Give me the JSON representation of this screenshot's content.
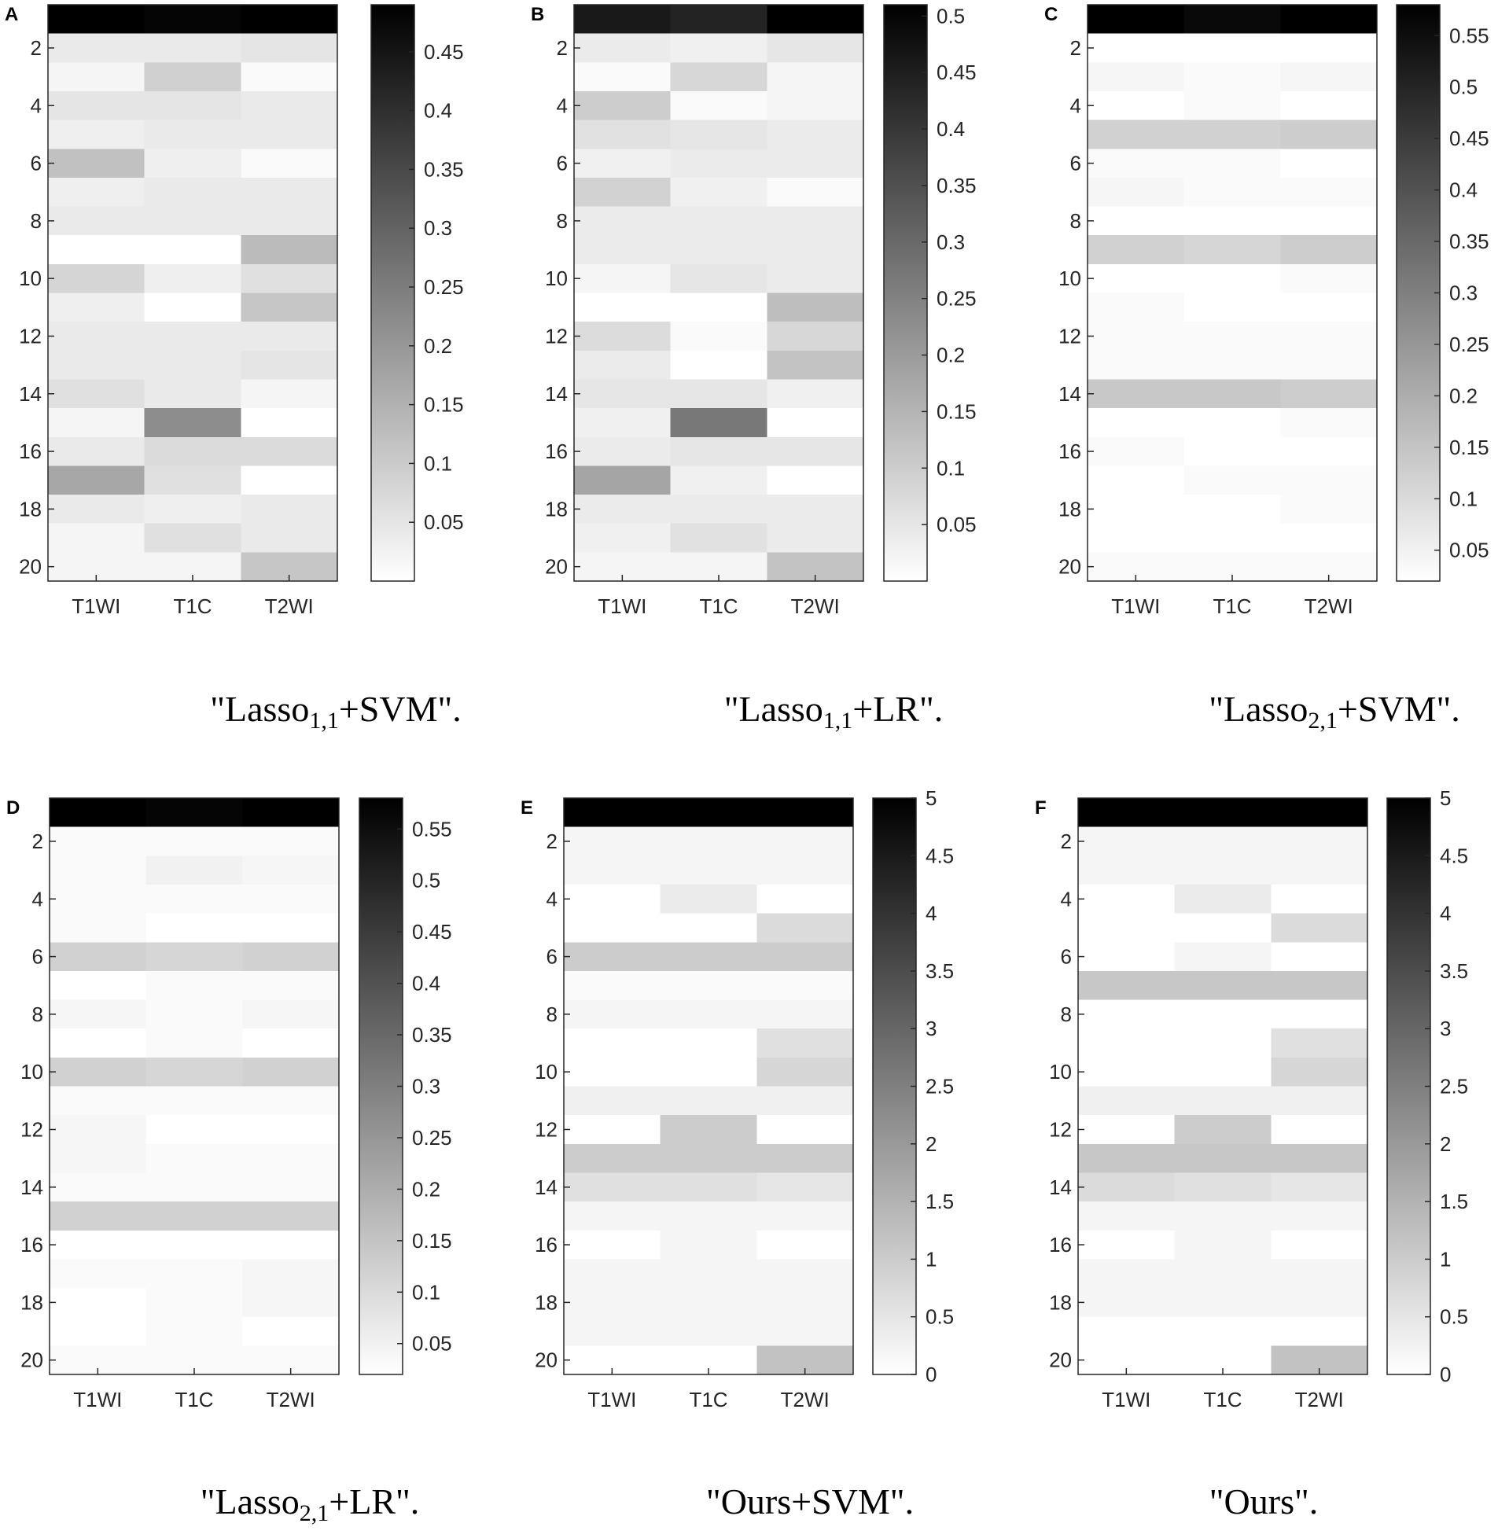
{
  "figure": {
    "captions": [
      {
        "pre": "\"Lasso",
        "sub": "1,1",
        "post": "+SVM\"."
      },
      {
        "pre": "\"Lasso",
        "sub": "1,1",
        "post": "+LR\"."
      },
      {
        "pre": "\"Lasso",
        "sub": "2,1",
        "post": "+SVM\"."
      },
      {
        "pre": "\"Lasso",
        "sub": "2,1",
        "post": "+LR\"."
      },
      {
        "pre": "\"Ours+SVM\".",
        "sub": "",
        "post": ""
      },
      {
        "pre": "\"Ours\".",
        "sub": "",
        "post": ""
      }
    ]
  },
  "chart_data": [
    {
      "type": "heatmap",
      "panel": "A",
      "x_categories": [
        "T1WI",
        "T1C",
        "T2WI"
      ],
      "y_ticks": [
        2,
        4,
        6,
        8,
        10,
        12,
        14,
        16,
        18,
        20
      ],
      "y_range": [
        1,
        20
      ],
      "colormap": "gray-reversed",
      "colorbar": {
        "min": 0,
        "max": 0.49,
        "ticks": [
          "0.05",
          "0.1",
          "0.15",
          "0.2",
          "0.25",
          "0.3",
          "0.35",
          "0.4",
          "0.45"
        ]
      },
      "values": [
        [
          0.49,
          0.48,
          0.49
        ],
        [
          0.04,
          0.04,
          0.05
        ],
        [
          0.02,
          0.09,
          0.01
        ],
        [
          0.05,
          0.05,
          0.04
        ],
        [
          0.03,
          0.04,
          0.04
        ],
        [
          0.12,
          0.03,
          0.01
        ],
        [
          0.03,
          0.04,
          0.04
        ],
        [
          0.04,
          0.04,
          0.04
        ],
        [
          0.0,
          0.0,
          0.13
        ],
        [
          0.08,
          0.03,
          0.06
        ],
        [
          0.03,
          0.0,
          0.11
        ],
        [
          0.04,
          0.04,
          0.04
        ],
        [
          0.04,
          0.04,
          0.05
        ],
        [
          0.06,
          0.04,
          0.02
        ],
        [
          0.02,
          0.22,
          0.0
        ],
        [
          0.04,
          0.07,
          0.07
        ],
        [
          0.17,
          0.06,
          0.0
        ],
        [
          0.04,
          0.03,
          0.04
        ],
        [
          0.02,
          0.06,
          0.04
        ],
        [
          0.02,
          0.02,
          0.11
        ]
      ]
    },
    {
      "type": "heatmap",
      "panel": "B",
      "x_categories": [
        "T1WI",
        "T1C",
        "T2WI"
      ],
      "y_ticks": [
        2,
        4,
        6,
        8,
        10,
        12,
        14,
        16,
        18,
        20
      ],
      "y_range": [
        1,
        20
      ],
      "colormap": "gray-reversed",
      "colorbar": {
        "min": 0,
        "max": 0.51,
        "ticks": [
          "0.05",
          "0.1",
          "0.15",
          "0.2",
          "0.25",
          "0.3",
          "0.35",
          "0.4",
          "0.45",
          "0.5"
        ]
      },
      "values": [
        [
          0.46,
          0.44,
          0.51
        ],
        [
          0.04,
          0.03,
          0.05
        ],
        [
          0.01,
          0.08,
          0.02
        ],
        [
          0.1,
          0.01,
          0.02
        ],
        [
          0.06,
          0.05,
          0.04
        ],
        [
          0.03,
          0.04,
          0.04
        ],
        [
          0.09,
          0.03,
          0.01
        ],
        [
          0.04,
          0.04,
          0.04
        ],
        [
          0.04,
          0.04,
          0.04
        ],
        [
          0.02,
          0.05,
          0.04
        ],
        [
          0.0,
          0.0,
          0.13
        ],
        [
          0.07,
          0.01,
          0.08
        ],
        [
          0.04,
          0.0,
          0.12
        ],
        [
          0.05,
          0.05,
          0.03
        ],
        [
          0.03,
          0.27,
          0.0
        ],
        [
          0.04,
          0.05,
          0.05
        ],
        [
          0.18,
          0.03,
          0.0
        ],
        [
          0.04,
          0.04,
          0.04
        ],
        [
          0.03,
          0.06,
          0.04
        ],
        [
          0.02,
          0.02,
          0.12
        ]
      ]
    },
    {
      "type": "heatmap",
      "panel": "C",
      "x_categories": [
        "T1WI",
        "T1C",
        "T2WI"
      ],
      "y_ticks": [
        2,
        4,
        6,
        8,
        10,
        12,
        14,
        16,
        18,
        20
      ],
      "y_range": [
        1,
        20
      ],
      "colormap": "gray-reversed",
      "colorbar": {
        "min": 0.02,
        "max": 0.58,
        "ticks": [
          "0.05",
          "0.1",
          "0.15",
          "0.2",
          "0.25",
          "0.3",
          "0.35",
          "0.4",
          "0.45",
          "0.5",
          "0.55"
        ]
      },
      "values": [
        [
          0.58,
          0.56,
          0.58
        ],
        [
          0.02,
          0.02,
          0.02
        ],
        [
          0.04,
          0.03,
          0.04
        ],
        [
          0.02,
          0.03,
          0.02
        ],
        [
          0.12,
          0.12,
          0.13
        ],
        [
          0.03,
          0.03,
          0.02
        ],
        [
          0.04,
          0.03,
          0.03
        ],
        [
          0.02,
          0.02,
          0.02
        ],
        [
          0.12,
          0.11,
          0.13
        ],
        [
          0.02,
          0.02,
          0.03
        ],
        [
          0.03,
          0.02,
          0.02
        ],
        [
          0.03,
          0.03,
          0.03
        ],
        [
          0.03,
          0.03,
          0.03
        ],
        [
          0.14,
          0.14,
          0.13
        ],
        [
          0.02,
          0.02,
          0.03
        ],
        [
          0.03,
          0.02,
          0.02
        ],
        [
          0.02,
          0.03,
          0.03
        ],
        [
          0.02,
          0.02,
          0.03
        ],
        [
          0.02,
          0.02,
          0.02
        ],
        [
          0.03,
          0.03,
          0.03
        ]
      ]
    },
    {
      "type": "heatmap",
      "panel": "D",
      "x_categories": [
        "T1WI",
        "T1C",
        "T2WI"
      ],
      "y_ticks": [
        2,
        4,
        6,
        8,
        10,
        12,
        14,
        16,
        18,
        20
      ],
      "y_range": [
        1,
        20
      ],
      "colormap": "gray-reversed",
      "colorbar": {
        "min": 0.02,
        "max": 0.58,
        "ticks": [
          "0.05",
          "0.1",
          "0.15",
          "0.2",
          "0.25",
          "0.3",
          "0.35",
          "0.4",
          "0.45",
          "0.5",
          "0.55"
        ]
      },
      "values": [
        [
          0.58,
          0.57,
          0.58
        ],
        [
          0.03,
          0.03,
          0.03
        ],
        [
          0.03,
          0.05,
          0.04
        ],
        [
          0.03,
          0.03,
          0.03
        ],
        [
          0.03,
          0.02,
          0.02
        ],
        [
          0.12,
          0.11,
          0.12
        ],
        [
          0.02,
          0.03,
          0.03
        ],
        [
          0.04,
          0.03,
          0.04
        ],
        [
          0.02,
          0.03,
          0.02
        ],
        [
          0.12,
          0.11,
          0.12
        ],
        [
          0.03,
          0.03,
          0.03
        ],
        [
          0.04,
          0.02,
          0.02
        ],
        [
          0.04,
          0.03,
          0.03
        ],
        [
          0.03,
          0.03,
          0.03
        ],
        [
          0.12,
          0.12,
          0.12
        ],
        [
          0.02,
          0.02,
          0.02
        ],
        [
          0.03,
          0.03,
          0.04
        ],
        [
          0.02,
          0.03,
          0.04
        ],
        [
          0.02,
          0.03,
          0.02
        ],
        [
          0.03,
          0.03,
          0.03
        ]
      ]
    },
    {
      "type": "heatmap",
      "panel": "E",
      "x_categories": [
        "T1WI",
        "T1C",
        "T2WI"
      ],
      "y_ticks": [
        2,
        4,
        6,
        8,
        10,
        12,
        14,
        16,
        18,
        20
      ],
      "y_range": [
        1,
        20
      ],
      "colormap": "gray-reversed",
      "colorbar": {
        "min": 0,
        "max": 5,
        "ticks": [
          "0",
          "0.5",
          "1",
          "1.5",
          "2",
          "2.5",
          "3",
          "3.5",
          "4",
          "4.5",
          "5"
        ]
      },
      "values": [
        [
          5.0,
          5.0,
          5.0
        ],
        [
          0.2,
          0.2,
          0.2
        ],
        [
          0.2,
          0.2,
          0.2
        ],
        [
          0.0,
          0.4,
          0.0
        ],
        [
          0.0,
          0.0,
          0.7
        ],
        [
          1.0,
          1.0,
          1.0
        ],
        [
          0.1,
          0.1,
          0.1
        ],
        [
          0.2,
          0.2,
          0.2
        ],
        [
          0.0,
          0.0,
          0.6
        ],
        [
          0.0,
          0.0,
          0.8
        ],
        [
          0.3,
          0.3,
          0.3
        ],
        [
          0.0,
          1.0,
          0.0
        ],
        [
          1.0,
          1.0,
          1.0
        ],
        [
          0.6,
          0.6,
          0.5
        ],
        [
          0.2,
          0.2,
          0.2
        ],
        [
          0.0,
          0.2,
          0.0
        ],
        [
          0.2,
          0.2,
          0.2
        ],
        [
          0.2,
          0.2,
          0.2
        ],
        [
          0.2,
          0.2,
          0.2
        ],
        [
          0.0,
          0.0,
          1.2
        ]
      ]
    },
    {
      "type": "heatmap",
      "panel": "F",
      "x_categories": [
        "T1WI",
        "T1C",
        "T2WI"
      ],
      "y_ticks": [
        2,
        4,
        6,
        8,
        10,
        12,
        14,
        16,
        18,
        20
      ],
      "y_range": [
        1,
        20
      ],
      "colormap": "gray-reversed",
      "colorbar": {
        "min": 0,
        "max": 5,
        "ticks": [
          "0",
          "0.5",
          "1",
          "1.5",
          "2",
          "2.5",
          "3",
          "3.5",
          "4",
          "4.5",
          "5"
        ]
      },
      "values": [
        [
          5.0,
          5.0,
          5.0
        ],
        [
          0.2,
          0.2,
          0.2
        ],
        [
          0.2,
          0.2,
          0.2
        ],
        [
          0.0,
          0.4,
          0.0
        ],
        [
          0.0,
          0.0,
          0.7
        ],
        [
          0.0,
          0.2,
          0.0
        ],
        [
          1.1,
          1.1,
          1.1
        ],
        [
          0.0,
          0.0,
          0.0
        ],
        [
          0.0,
          0.0,
          0.6
        ],
        [
          0.0,
          0.0,
          0.8
        ],
        [
          0.3,
          0.3,
          0.3
        ],
        [
          0.0,
          1.0,
          0.0
        ],
        [
          1.1,
          1.1,
          1.1
        ],
        [
          0.7,
          0.6,
          0.5
        ],
        [
          0.2,
          0.2,
          0.2
        ],
        [
          0.0,
          0.2,
          0.0
        ],
        [
          0.2,
          0.2,
          0.2
        ],
        [
          0.2,
          0.2,
          0.2
        ],
        [
          0.0,
          0.0,
          0.0
        ],
        [
          0.0,
          0.0,
          1.2
        ]
      ]
    }
  ]
}
